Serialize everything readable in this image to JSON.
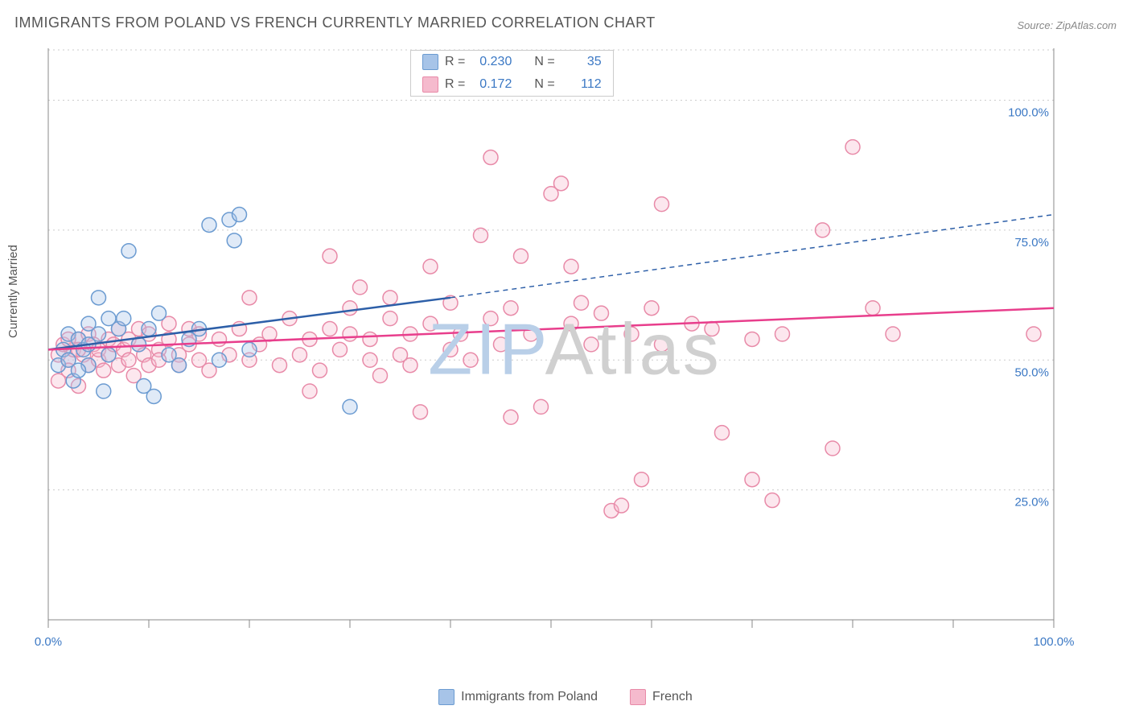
{
  "title": "IMMIGRANTS FROM POLAND VS FRENCH CURRENTLY MARRIED CORRELATION CHART",
  "source_label": "Source: ZipAtlas.com",
  "y_axis_label": "Currently Married",
  "watermark_text": "ZIPAtlas",
  "watermark_color_a": "#b9cfe8",
  "watermark_color_b": "#d0d0d0",
  "chart": {
    "type": "scatter",
    "xlim": [
      0,
      100
    ],
    "ylim": [
      0,
      110
    ],
    "x_ticks": [
      0,
      10,
      20,
      30,
      40,
      50,
      60,
      70,
      80,
      90,
      100
    ],
    "y_gridlines": [
      25,
      50,
      75,
      100
    ],
    "x_tick_labels": {
      "0": "0.0%",
      "100": "100.0%"
    },
    "y_tick_labels": {
      "25": "25.0%",
      "50": "50.0%",
      "75": "75.0%",
      "100": "100.0%"
    },
    "grid_color": "#cccccc",
    "axis_color": "#888888",
    "background_color": "#ffffff",
    "marker_radius": 9,
    "series": [
      {
        "name": "Immigrants from Poland",
        "color_fill": "#a7c4e8",
        "color_stroke": "#6b9bd1",
        "trend_color": "#2d5fa8",
        "R": "0.230",
        "N": "35",
        "trend": {
          "x1": 0,
          "y1": 52,
          "x2_solid": 40,
          "y2_solid": 62,
          "x2_dash": 100,
          "y2_dash": 78
        },
        "points": [
          [
            1,
            49
          ],
          [
            1.5,
            52
          ],
          [
            2,
            50
          ],
          [
            2,
            55
          ],
          [
            2.5,
            46
          ],
          [
            3,
            54
          ],
          [
            3.5,
            52
          ],
          [
            4,
            57
          ],
          [
            4,
            49
          ],
          [
            5,
            62
          ],
          [
            5,
            55
          ],
          [
            5.5,
            44
          ],
          [
            6,
            51
          ],
          [
            7,
            56
          ],
          [
            7.5,
            58
          ],
          [
            8,
            71
          ],
          [
            9,
            53
          ],
          [
            9.5,
            45
          ],
          [
            10,
            56
          ],
          [
            10.5,
            43
          ],
          [
            11,
            59
          ],
          [
            12,
            51
          ],
          [
            13,
            49
          ],
          [
            14,
            54
          ],
          [
            15,
            56
          ],
          [
            16,
            76
          ],
          [
            17,
            50
          ],
          [
            18,
            77
          ],
          [
            18.5,
            73
          ],
          [
            19,
            78
          ],
          [
            20,
            52
          ],
          [
            30,
            41
          ],
          [
            3,
            48
          ],
          [
            4,
            53
          ],
          [
            6,
            58
          ]
        ]
      },
      {
        "name": "French",
        "color_fill": "#f5bacd",
        "color_stroke": "#e88aa8",
        "trend_color": "#e83e8c",
        "R": "0.172",
        "N": "112",
        "trend": {
          "x1": 0,
          "y1": 52,
          "x2_solid": 100,
          "y2_solid": 60,
          "x2_dash": 100,
          "y2_dash": 60
        },
        "points": [
          [
            1,
            51
          ],
          [
            1.5,
            53
          ],
          [
            2,
            50
          ],
          [
            2,
            48
          ],
          [
            2.5,
            52
          ],
          [
            3,
            54
          ],
          [
            3,
            45
          ],
          [
            3.5,
            51
          ],
          [
            4,
            49
          ],
          [
            4,
            55
          ],
          [
            4.5,
            53
          ],
          [
            5,
            50
          ],
          [
            5,
            52
          ],
          [
            5.5,
            48
          ],
          [
            6,
            54
          ],
          [
            6,
            51
          ],
          [
            6.5,
            53
          ],
          [
            7,
            49
          ],
          [
            7,
            56
          ],
          [
            7.5,
            52
          ],
          [
            8,
            50
          ],
          [
            8,
            54
          ],
          [
            8.5,
            47
          ],
          [
            9,
            53
          ],
          [
            9,
            56
          ],
          [
            9.5,
            51
          ],
          [
            10,
            49
          ],
          [
            10,
            55
          ],
          [
            11,
            52
          ],
          [
            11,
            50
          ],
          [
            12,
            54
          ],
          [
            12,
            57
          ],
          [
            13,
            51
          ],
          [
            13,
            49
          ],
          [
            14,
            53
          ],
          [
            14,
            56
          ],
          [
            15,
            50
          ],
          [
            15,
            55
          ],
          [
            16,
            48
          ],
          [
            17,
            54
          ],
          [
            18,
            51
          ],
          [
            19,
            56
          ],
          [
            20,
            50
          ],
          [
            20,
            62
          ],
          [
            21,
            53
          ],
          [
            22,
            55
          ],
          [
            23,
            49
          ],
          [
            24,
            58
          ],
          [
            25,
            51
          ],
          [
            26,
            54
          ],
          [
            26,
            44
          ],
          [
            27,
            48
          ],
          [
            28,
            56
          ],
          [
            28,
            70
          ],
          [
            29,
            52
          ],
          [
            30,
            55
          ],
          [
            30,
            60
          ],
          [
            31,
            64
          ],
          [
            32,
            50
          ],
          [
            32,
            54
          ],
          [
            33,
            47
          ],
          [
            34,
            58
          ],
          [
            34,
            62
          ],
          [
            35,
            51
          ],
          [
            36,
            55
          ],
          [
            36,
            49
          ],
          [
            37,
            40
          ],
          [
            38,
            68
          ],
          [
            38,
            57
          ],
          [
            40,
            52
          ],
          [
            40,
            61
          ],
          [
            41,
            55
          ],
          [
            42,
            50
          ],
          [
            43,
            74
          ],
          [
            44,
            58
          ],
          [
            44,
            89
          ],
          [
            45,
            53
          ],
          [
            46,
            39
          ],
          [
            46,
            60
          ],
          [
            47,
            70
          ],
          [
            48,
            55
          ],
          [
            49,
            41
          ],
          [
            50,
            82
          ],
          [
            51,
            84
          ],
          [
            52,
            57
          ],
          [
            52,
            68
          ],
          [
            53,
            61
          ],
          [
            54,
            53
          ],
          [
            55,
            59
          ],
          [
            56,
            21
          ],
          [
            57,
            22
          ],
          [
            58,
            55
          ],
          [
            59,
            27
          ],
          [
            60,
            60
          ],
          [
            61,
            80
          ],
          [
            61,
            53
          ],
          [
            64,
            57
          ],
          [
            66,
            56
          ],
          [
            67,
            36
          ],
          [
            70,
            27
          ],
          [
            70,
            54
          ],
          [
            72,
            23
          ],
          [
            73,
            55
          ],
          [
            77,
            75
          ],
          [
            78,
            33
          ],
          [
            80,
            91
          ],
          [
            82,
            60
          ],
          [
            84,
            55
          ],
          [
            98,
            55
          ],
          [
            1,
            46
          ],
          [
            2,
            54
          ],
          [
            3,
            52
          ]
        ]
      }
    ]
  },
  "bottom_legend": [
    {
      "label": "Immigrants from Poland",
      "fill": "#a7c4e8",
      "stroke": "#6b9bd1"
    },
    {
      "label": "French",
      "fill": "#f5bacd",
      "stroke": "#e88aa8"
    }
  ]
}
